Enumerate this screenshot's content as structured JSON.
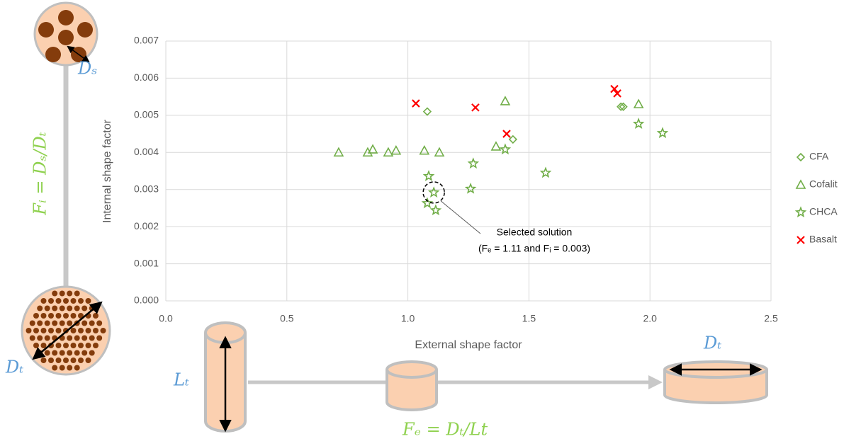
{
  "chart_data": {
    "type": "scatter",
    "xlabel": "External shape factor",
    "ylabel": "Internal shape factor",
    "xlim": [
      0,
      2.5
    ],
    "ylim": [
      0,
      0.007
    ],
    "xticks": [
      {
        "value": 0,
        "label": "0.0"
      },
      0.5,
      {
        "value": 1,
        "label": "1.0"
      },
      1.5,
      {
        "value": 2,
        "label": "2.0"
      },
      2.5
    ],
    "yticks": [
      {
        "value": 0,
        "label": "0.000"
      },
      0.001,
      0.002,
      0.003,
      0.004,
      0.005,
      0.006,
      0.007
    ],
    "grid": true,
    "legend": "right",
    "series": [
      {
        "name": "CFA",
        "marker": "diamond",
        "color": "#70ad47",
        "x": [
          1.08,
          1.88,
          1.89,
          1.434
        ],
        "values": [
          0.0051,
          0.00523,
          0.00523,
          0.00435
        ]
      },
      {
        "name": "Cofalit",
        "marker": "triangle",
        "color": "#70ad47",
        "x": [
          0.714,
          0.834,
          0.855,
          0.919,
          0.951,
          1.068,
          1.13,
          1.364,
          1.402,
          1.953
        ],
        "values": [
          0.004,
          0.004,
          0.00408,
          0.004,
          0.00405,
          0.00405,
          0.004,
          0.00416,
          0.00538,
          0.0053
        ]
      },
      {
        "name": "CHCA",
        "marker": "star",
        "color": "#70ad47",
        "x": [
          1.086,
          1.107,
          1.08,
          1.115,
          1.27,
          1.259,
          1.402,
          1.569,
          1.953,
          2.052
        ],
        "values": [
          0.00336,
          0.00292,
          0.00263,
          0.00244,
          0.0037,
          0.00302,
          0.00408,
          0.00345,
          0.00477,
          0.00452
        ]
      },
      {
        "name": "Basalt",
        "marker": "x",
        "color": "#ff0000",
        "x": [
          1.033,
          1.279,
          1.408,
          1.853,
          1.865
        ],
        "values": [
          0.00532,
          0.00521,
          0.0045,
          0.00571,
          0.00559
        ]
      }
    ],
    "annotation": {
      "x": 1.107,
      "y": 0.00292,
      "lines": [
        "Selected solution",
        "(Fₑ = 1.11 and Fᵢ = 0.003)"
      ]
    }
  },
  "diagram": {
    "ds": "Dₛ",
    "fi": "Fᵢ = Dₛ/Dₜ",
    "dt_left": "Dₜ",
    "lt": "Lₜ",
    "dt_right": "Dₜ",
    "fe": "Fₑ = Dₜ/Lt"
  }
}
